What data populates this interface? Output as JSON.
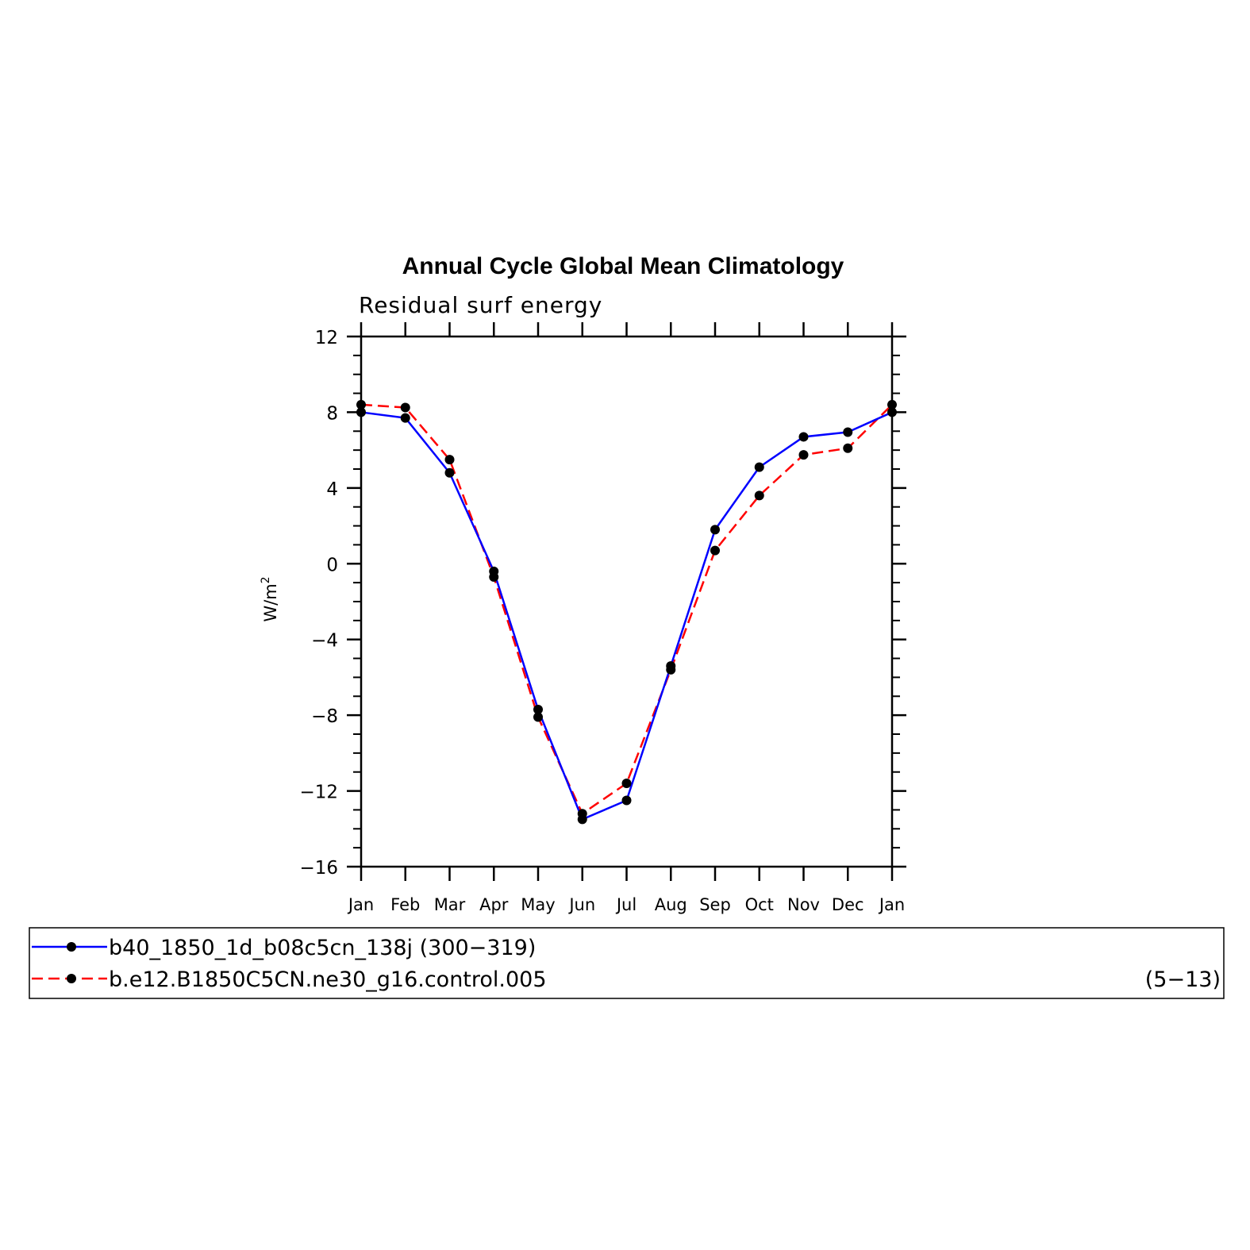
{
  "chart_data": {
    "type": "line",
    "title": "Annual Cycle Global Mean Climatology",
    "subtitle": "Residual surf energy",
    "ylabel": "W/m",
    "ylabel_sup": "2",
    "xlabel": "",
    "categories": [
      "Jan",
      "Feb",
      "Mar",
      "Apr",
      "May",
      "Jun",
      "Jul",
      "Aug",
      "Sep",
      "Oct",
      "Nov",
      "Dec",
      "Jan"
    ],
    "ylim": [
      -16,
      12
    ],
    "yticks": [
      -16,
      -12,
      -8,
      -4,
      0,
      4,
      8,
      12
    ],
    "ytick_labels": [
      "−16",
      "−12",
      "−8",
      "−4",
      "0",
      "4",
      "8",
      "12"
    ],
    "series": [
      {
        "name": "b40_1850_1d_b08c5cn_138j (300−319)",
        "color": "#0000ff",
        "dash": "solid",
        "values": [
          8.0,
          7.7,
          4.8,
          -0.4,
          -7.7,
          -13.5,
          -12.5,
          -5.4,
          1.8,
          5.1,
          6.7,
          6.95,
          8.0
        ]
      },
      {
        "name": "b.e12.B1850C5CN.ne30_g16.control.005",
        "color": "#ff0000",
        "dash": "dashed",
        "values": [
          8.4,
          8.25,
          5.5,
          -0.7,
          -8.1,
          -13.2,
          -11.6,
          -5.6,
          0.7,
          3.6,
          5.75,
          6.1,
          8.4
        ]
      }
    ],
    "marker_color": "#000000",
    "grid": false,
    "legend": {
      "placement": "bottom",
      "items": [
        {
          "label": "b40_1850_1d_b08c5cn_138j (300−319)",
          "extra": ""
        },
        {
          "label": "b.e12.B1850C5CN.ne30_g16.control.005",
          "extra": "(5−13)"
        }
      ]
    }
  }
}
